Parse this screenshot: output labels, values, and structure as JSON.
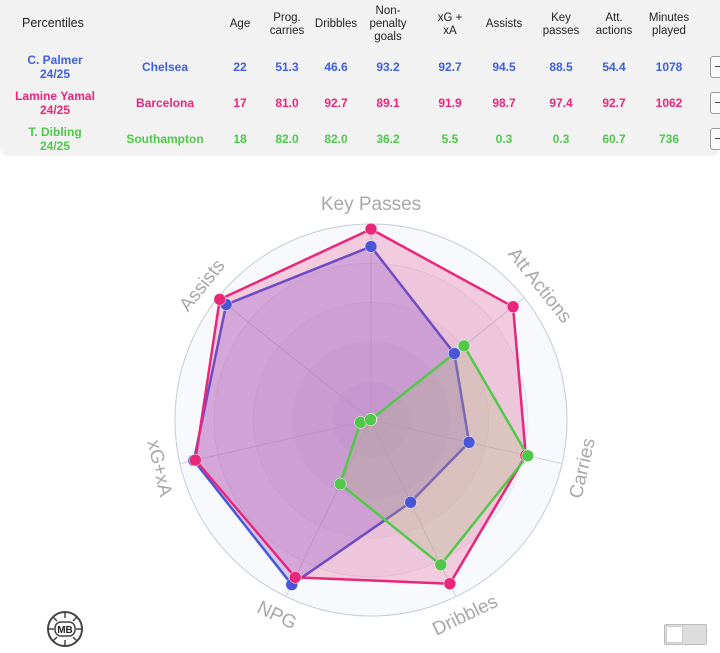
{
  "table": {
    "title": "Percentiles",
    "columns": [
      {
        "key": "age",
        "label": [
          "Age"
        ]
      },
      {
        "key": "prog",
        "label": [
          "Prog.",
          "carries"
        ]
      },
      {
        "key": "drib",
        "label": [
          "Dribbles"
        ]
      },
      {
        "key": "npg",
        "label": [
          "Non-",
          "penalty",
          "goals"
        ]
      },
      {
        "key": "xgxa",
        "label": [
          "xG +",
          "xA"
        ]
      },
      {
        "key": "assists",
        "label": [
          "Assists"
        ]
      },
      {
        "key": "kp",
        "label": [
          "Key",
          "passes"
        ]
      },
      {
        "key": "att",
        "label": [
          "Att.",
          "actions"
        ]
      },
      {
        "key": "mins",
        "label": [
          "Minutes",
          "played"
        ]
      }
    ],
    "rows": [
      {
        "player": "C. Palmer",
        "season": "24/25",
        "team": "Chelsea",
        "color": "#3e5fe0",
        "values": [
          "22",
          "51.3",
          "46.6",
          "93.2",
          "92.7",
          "94.5",
          "88.5",
          "54.4",
          "1078"
        ]
      },
      {
        "player": "Lamine Yamal",
        "season": "24/25",
        "team": "Barcelona",
        "color": "#e8277a",
        "values": [
          "17",
          "81.0",
          "92.7",
          "89.1",
          "91.9",
          "98.7",
          "97.4",
          "92.7",
          "1062"
        ]
      },
      {
        "player": "T. Dibling",
        "season": "24/25",
        "team": "Southampton",
        "color": "#4ec94a",
        "values": [
          "18",
          "82.0",
          "82.0",
          "36.2",
          "5.5",
          "0.3",
          "0.3",
          "60.7",
          "736"
        ]
      }
    ]
  },
  "chart_data": {
    "type": "radar",
    "axes": [
      "Key Passes",
      "Att Actions",
      "Carries",
      "Dribbles",
      "NPG",
      "xG+xA",
      "Assists"
    ],
    "range": [
      0,
      100
    ],
    "series": [
      {
        "name": "C. Palmer",
        "color": "#4a55d8",
        "fill": "rgba(120,90,220,0.30)",
        "values": [
          88.5,
          54.4,
          51.3,
          46.6,
          93.2,
          92.7,
          94.5
        ]
      },
      {
        "name": "Lamine Yamal",
        "color": "#e8277a",
        "fill": "rgba(232,39,122,0.22)",
        "values": [
          97.4,
          92.7,
          81.0,
          92.7,
          89.1,
          91.9,
          98.7
        ]
      },
      {
        "name": "T. Dibling",
        "color": "#52c84a",
        "fill": "rgba(170,190,110,0.25)",
        "values": [
          0.3,
          60.7,
          82.0,
          82.0,
          36.2,
          5.5,
          0.3
        ]
      }
    ]
  },
  "logo_text": "MB"
}
